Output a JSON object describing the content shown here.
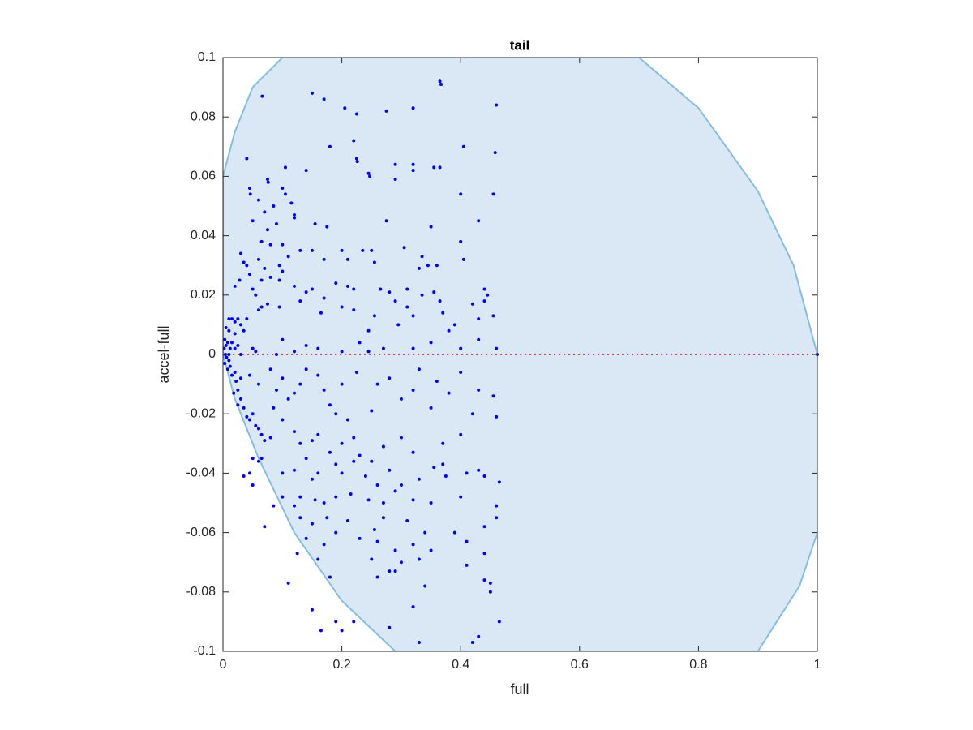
{
  "chart_data": {
    "type": "scatter",
    "title": "tail",
    "x_label": "full",
    "y_label": "accel-full",
    "xlim": [
      0,
      1
    ],
    "ylim": [
      -0.1,
      0.1
    ],
    "xticks": [
      0,
      0.2,
      0.4,
      0.6,
      0.8,
      1
    ],
    "yticks": [
      -0.1,
      -0.08,
      -0.06,
      -0.04,
      -0.02,
      0,
      0.02,
      0.04,
      0.06,
      0.08,
      0.1
    ],
    "color": "#0000ff",
    "region": {
      "color": "#d9e8f4",
      "edge_color": "#86bde0",
      "x": [
        0,
        0.02,
        0.05,
        0.1,
        0.7,
        0.8,
        0.9,
        0.96,
        1,
        1,
        0.97,
        0.9,
        0.29,
        0.2,
        0.12,
        0.06,
        0.02,
        0
      ],
      "y": [
        0.06,
        0.075,
        0.09,
        0.1,
        0.1,
        0.083,
        0.055,
        0.03,
        0,
        -0.06,
        -0.078,
        -0.1,
        -0.1,
        -0.083,
        -0.06,
        -0.035,
        -0.015,
        0
      ]
    },
    "reference_line": {
      "y": 0,
      "color": "#ff0000"
    },
    "x": [
      0.066,
      0.15,
      0.17,
      0.205,
      0.225,
      0.275,
      0.32,
      0.365,
      0.367,
      0.46,
      0.18,
      0.22,
      0.225,
      0.226,
      0.245,
      0.247,
      0.29,
      0.32,
      0.32,
      0.355,
      0.365,
      0.405,
      0.458,
      0.04,
      0.105,
      0.14,
      0.075,
      0.076,
      0.045,
      0.046,
      0.1,
      0.105,
      0.29,
      0.455,
      0.4,
      0.06,
      0.085,
      0.115,
      0.12,
      0.12,
      0.07,
      0.05,
      0.075,
      0.09,
      0.275,
      0.175,
      0.155,
      0.35,
      0.43,
      0.065,
      0.08,
      0.1,
      0.11,
      0.13,
      0.15,
      0.095,
      0.06,
      0.04,
      0.045,
      0.07,
      0.2,
      0.17,
      0.21,
      0.235,
      0.25,
      0.255,
      0.305,
      0.335,
      0.33,
      0.36,
      0.4,
      0.405,
      0.345,
      0.03,
      0.035,
      0.028,
      0.02,
      0.05,
      0.055,
      0.065,
      0.08,
      0.1,
      0.095,
      0.12,
      0.14,
      0.15,
      0.19,
      0.21,
      0.22,
      0.265,
      0.28,
      0.31,
      0.335,
      0.355,
      0.44,
      0.445,
      0.44,
      0.01,
      0.015,
      0.02,
      0.025,
      0.03,
      0.005,
      0.01,
      0.02,
      0.035,
      0.04,
      0.06,
      0.065,
      0.075,
      0.095,
      0.13,
      0.165,
      0.17,
      0.2,
      0.22,
      0.29,
      0.31,
      0.255,
      0.245,
      0.295,
      0.32,
      0.37,
      0.39,
      0.43,
      0.455,
      0.42,
      0.365,
      0.38,
      0.003,
      0.005,
      0.002,
      0.008,
      0.012,
      0.015,
      0.02,
      0.025,
      0.004,
      0.006,
      0.01,
      0.03,
      0.05,
      0.055,
      0.09,
      0.1,
      0.12,
      0.14,
      0.16,
      0.2,
      0.23,
      0.245,
      0.27,
      0.32,
      0.35,
      0.4,
      0.43,
      0.46,
      0.003,
      0.008,
      0.012,
      0.015,
      0.02,
      0.022,
      0.025,
      0.03,
      0.018,
      0.03,
      0.035,
      0.025,
      0.04,
      0.045,
      0.05,
      0.055,
      0.06,
      0.065,
      0.07,
      0.08,
      0.05,
      0.06,
      0.065,
      0.045,
      0.05,
      0.035,
      0.045,
      0.06,
      0.08,
      0.09,
      0.1,
      0.11,
      0.12,
      0.13,
      0.14,
      0.16,
      0.17,
      0.18,
      0.19,
      0.21,
      0.2,
      0.225,
      0.26,
      0.28,
      0.3,
      0.32,
      0.33,
      0.36,
      0.38,
      0.4,
      0.43,
      0.455,
      0.46,
      0.42,
      0.35,
      0.25,
      0.085,
      0.1,
      0.12,
      0.13,
      0.15,
      0.16,
      0.18,
      0.2,
      0.22,
      0.23,
      0.25,
      0.27,
      0.3,
      0.32,
      0.37,
      0.4,
      0.37,
      0.1,
      0.12,
      0.14,
      0.15,
      0.16,
      0.19,
      0.2,
      0.22,
      0.24,
      0.26,
      0.28,
      0.3,
      0.33,
      0.355,
      0.375,
      0.41,
      0.43,
      0.44,
      0.465,
      0.1,
      0.12,
      0.13,
      0.155,
      0.17,
      0.19,
      0.215,
      0.245,
      0.27,
      0.29,
      0.32,
      0.35,
      0.4,
      0.46,
      0.085,
      0.07,
      0.13,
      0.15,
      0.175,
      0.21,
      0.255,
      0.27,
      0.31,
      0.34,
      0.39,
      0.44,
      0.46,
      0.14,
      0.17,
      0.19,
      0.23,
      0.26,
      0.29,
      0.32,
      0.35,
      0.41,
      0.125,
      0.16,
      0.25,
      0.3,
      0.33,
      0.41,
      0.44,
      0.11,
      0.18,
      0.26,
      0.28,
      0.29,
      0.34,
      0.44,
      0.45,
      0.15,
      0.32,
      0.45,
      0.165,
      0.19,
      0.2,
      0.22,
      0.28,
      0.33,
      0.42,
      0.43,
      0.465,
      1,
      0.01
    ],
    "values": [
      0.087,
      0.088,
      0.086,
      0.083,
      0.081,
      0.082,
      0.083,
      0.092,
      0.091,
      0.084,
      0.07,
      0.072,
      0.066,
      0.065,
      0.061,
      0.06,
      0.064,
      0.064,
      0.062,
      0.063,
      0.063,
      0.07,
      0.068,
      0.066,
      0.063,
      0.062,
      0.059,
      0.058,
      0.056,
      0.054,
      0.056,
      0.054,
      0.059,
      0.054,
      0.054,
      0.052,
      0.05,
      0.051,
      0.046,
      0.047,
      0.048,
      0.045,
      0.042,
      0.044,
      0.045,
      0.043,
      0.044,
      0.043,
      0.045,
      0.038,
      0.037,
      0.037,
      0.033,
      0.035,
      0.035,
      0.03,
      0.032,
      0.03,
      0.027,
      0.029,
      0.035,
      0.032,
      0.032,
      0.035,
      0.035,
      0.031,
      0.036,
      0.033,
      0.029,
      0.03,
      0.038,
      0.032,
      0.03,
      0.034,
      0.031,
      0.025,
      0.023,
      0.022,
      0.02,
      0.025,
      0.026,
      0.028,
      0.025,
      0.023,
      0.021,
      0.022,
      0.024,
      0.023,
      0.022,
      0.022,
      0.021,
      0.022,
      0.02,
      0.021,
      0.022,
      0.02,
      0.018,
      0.012,
      0.012,
      0.011,
      0.012,
      0.01,
      0.009,
      0.008,
      0.007,
      0.008,
      0.012,
      0.015,
      0.016,
      0.017,
      0.016,
      0.018,
      0.014,
      0.019,
      0.016,
      0.015,
      0.018,
      0.016,
      0.013,
      0.008,
      0.01,
      0.013,
      0.014,
      0.01,
      0.012,
      0.013,
      0.017,
      0.018,
      0.008,
      0.005,
      0.003,
      0.002,
      0.004,
      0.002,
      0.004,
      0.002,
      0.003,
      0,
      -0.001,
      0,
      0,
      0.002,
      0.001,
      0,
      0.005,
      0.001,
      0.003,
      0.002,
      0.001,
      0.004,
      0.001,
      0.002,
      0.002,
      0.004,
      0.002,
      0.005,
      0.002,
      -0.003,
      -0.005,
      -0.004,
      -0.007,
      -0.006,
      -0.009,
      -0.012,
      -0.008,
      -0.013,
      -0.015,
      -0.018,
      -0.017,
      -0.021,
      -0.022,
      -0.02,
      -0.024,
      -0.025,
      -0.027,
      -0.029,
      -0.028,
      -0.035,
      -0.036,
      -0.035,
      -0.04,
      -0.044,
      -0.041,
      -0.007,
      -0.01,
      -0.005,
      -0.012,
      -0.008,
      -0.015,
      -0.013,
      -0.01,
      -0.005,
      -0.007,
      -0.012,
      -0.017,
      -0.02,
      -0.022,
      -0.01,
      -0.006,
      -0.01,
      -0.008,
      -0.015,
      -0.012,
      -0.005,
      -0.009,
      -0.013,
      -0.006,
      -0.012,
      -0.014,
      -0.021,
      -0.02,
      -0.018,
      -0.019,
      -0.018,
      -0.022,
      -0.026,
      -0.03,
      -0.029,
      -0.027,
      -0.033,
      -0.03,
      -0.028,
      -0.034,
      -0.036,
      -0.031,
      -0.028,
      -0.033,
      -0.03,
      -0.027,
      -0.037,
      -0.04,
      -0.039,
      -0.035,
      -0.042,
      -0.04,
      -0.037,
      -0.04,
      -0.036,
      -0.041,
      -0.044,
      -0.039,
      -0.044,
      -0.042,
      -0.038,
      -0.041,
      -0.04,
      -0.039,
      -0.041,
      -0.043,
      -0.048,
      -0.051,
      -0.048,
      -0.049,
      -0.05,
      -0.048,
      -0.047,
      -0.049,
      -0.05,
      -0.046,
      -0.049,
      -0.05,
      -0.048,
      -0.051,
      -0.051,
      -0.058,
      -0.055,
      -0.057,
      -0.055,
      -0.056,
      -0.059,
      -0.055,
      -0.056,
      -0.06,
      -0.06,
      -0.058,
      -0.055,
      -0.062,
      -0.064,
      -0.06,
      -0.062,
      -0.063,
      -0.066,
      -0.064,
      -0.066,
      -0.063,
      -0.067,
      -0.069,
      -0.069,
      -0.07,
      -0.069,
      -0.071,
      -0.067,
      -0.077,
      -0.075,
      -0.075,
      -0.073,
      -0.073,
      -0.078,
      -0.076,
      -0.077,
      -0.086,
      -0.085,
      -0.08,
      -0.093,
      -0.09,
      -0.093,
      -0.09,
      -0.092,
      -0.097,
      -0.097,
      -0.095,
      -0.09,
      0,
      -0.002
    ]
  }
}
